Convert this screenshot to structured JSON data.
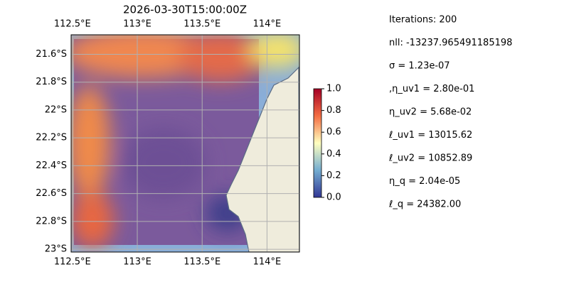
{
  "chart_data": {
    "type": "map",
    "title": "2026-03-30T15:00:00Z",
    "xlim": [
      112.49,
      114.25
    ],
    "ylim": [
      -23.02,
      -21.46
    ],
    "xticks": [
      {
        "value": 112.5,
        "label": "112.5°E"
      },
      {
        "value": 113,
        "label": "113°E"
      },
      {
        "value": 113.5,
        "label": "113.5°E"
      },
      {
        "value": 114,
        "label": "114°E"
      }
    ],
    "yticks": [
      {
        "value": -21.6,
        "label": "21.6°S"
      },
      {
        "value": -21.8,
        "label": "21.8°S"
      },
      {
        "value": -22,
        "label": "22°S"
      },
      {
        "value": -22.2,
        "label": "22.2°S"
      },
      {
        "value": -22.4,
        "label": "22.4°S"
      },
      {
        "value": -22.6,
        "label": "22.6°S"
      },
      {
        "value": -22.8,
        "label": "22.8°S"
      },
      {
        "value": -23,
        "label": "23°S"
      }
    ],
    "grid": true,
    "colorbar": {
      "lim": [
        0,
        1
      ],
      "ticks": [
        {
          "value": 0,
          "label": "0.0"
        },
        {
          "value": 0.2,
          "label": "0.2"
        },
        {
          "value": 0.4,
          "label": "0.4"
        },
        {
          "value": 0.6,
          "label": "0.6"
        },
        {
          "value": 0.8,
          "label": "0.8"
        },
        {
          "value": 1,
          "label": "1.0"
        }
      ],
      "colors": [
        "#313695",
        "#74add1",
        "#ffffbf",
        "#f46d43",
        "#a50026"
      ]
    },
    "annotations": [
      "Iterations: 200",
      "nll: -13237.965491185198",
      "σ = 1.23e-07",
      ",η_uv1 = 2.80e-01",
      "η_uv2 = 5.68e-02",
      "ℓ_uv1 = 13015.62",
      "ℓ_uv2 = 10852.89",
      "η_q = 2.04e-05",
      "ℓ_q = 24382.00"
    ]
  }
}
